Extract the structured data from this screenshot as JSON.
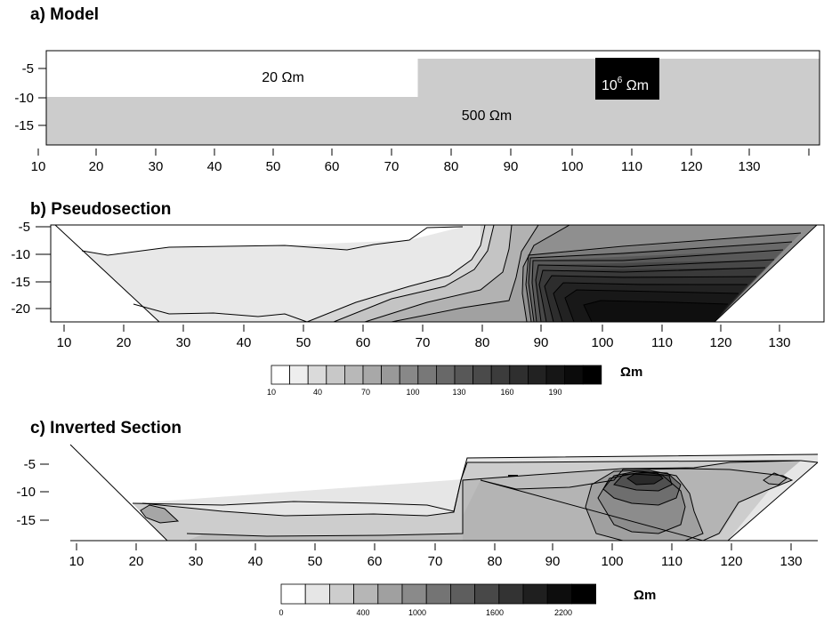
{
  "panels": {
    "a": {
      "title": "a) Model"
    },
    "b": {
      "title": "b) Pseudosection"
    },
    "c": {
      "title": "c) Inverted Section"
    }
  },
  "x_ticks": [
    "10",
    "20",
    "30",
    "40",
    "50",
    "60",
    "70",
    "80",
    "90",
    "100",
    "110",
    "120",
    "130"
  ],
  "model": {
    "y_ticks": [
      "-5",
      "-10",
      "-15"
    ],
    "label_20": "20 Ωm",
    "label_500": "500 Ωm",
    "label_high_base": "10",
    "label_high_exp": "6",
    "label_high_unit": " Ωm"
  },
  "pseudo": {
    "y_ticks": [
      "-5",
      "-10",
      "-15",
      "-20"
    ],
    "scale_labels": [
      "10",
      "40",
      "70",
      "100",
      "130",
      "160",
      "190"
    ],
    "unit": "Ωm"
  },
  "inverted": {
    "y_ticks": [
      "-5",
      "-10",
      "-15"
    ],
    "scale_labels": [
      "0",
      "400",
      "1000",
      "1600",
      "2200"
    ],
    "unit": "Ωm"
  },
  "colors": {
    "model_background": "#cccccc",
    "high_block": "#000000",
    "pseudo_scale": [
      "#ffffff",
      "#eeeeee",
      "#dadada",
      "#c8c8c8",
      "#b8b8b8",
      "#a8a8a8",
      "#999999",
      "#888888",
      "#787878",
      "#686868",
      "#585858",
      "#4a4a4a",
      "#3c3c3c",
      "#2f2f2f",
      "#222222",
      "#161616",
      "#0b0b0b",
      "#000000"
    ],
    "inverted_scale": [
      "#ffffff",
      "#e6e6e6",
      "#cdcdcd",
      "#b6b6b6",
      "#a0a0a0",
      "#8a8a8a",
      "#747474",
      "#5e5e5e",
      "#484848",
      "#333333",
      "#1f1f1f",
      "#0d0d0d",
      "#000000"
    ]
  }
}
